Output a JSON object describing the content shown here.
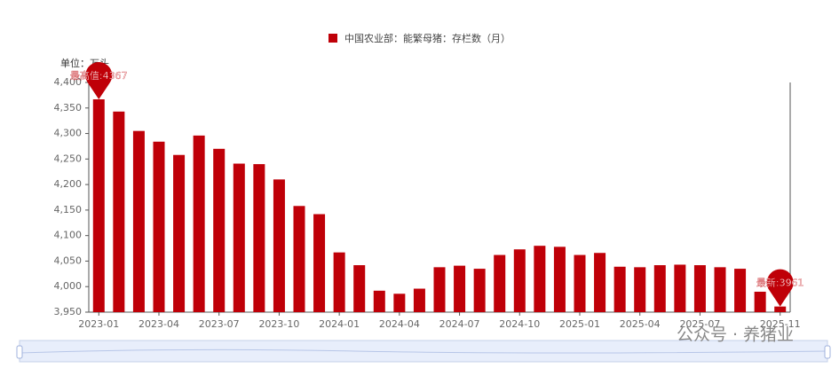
{
  "chart_data": {
    "type": "bar",
    "legend_label": "中国农业部：能繁母猪：存栏数（月）",
    "unit_label": "单位：万头",
    "annotations": [
      {
        "text": "最高值:4367",
        "index": 0
      },
      {
        "text": "最新:3961",
        "index": 34
      }
    ],
    "watermark": "公众号 · 养猪业",
    "categories": [
      "2023-01",
      null,
      null,
      "2023-04",
      null,
      null,
      "2023-07",
      null,
      null,
      "2023-10",
      null,
      null,
      "2024-01",
      null,
      null,
      "2024-04",
      null,
      null,
      "2024-07",
      null,
      null,
      "2024-10",
      null,
      null,
      "2025-01",
      null,
      null,
      "2025-04",
      null,
      null,
      "2025-07",
      null,
      null,
      null,
      "2025-11"
    ],
    "values": [
      4367,
      4343,
      4305,
      4284,
      4258,
      4296,
      4270,
      4241,
      4240,
      4210,
      4158,
      4142,
      4067,
      4042,
      3992,
      3986,
      3996,
      4038,
      4041,
      4035,
      4062,
      4073,
      4080,
      4078,
      4062,
      4066,
      4039,
      4038,
      4042,
      4043,
      4042,
      4038,
      4035,
      3990,
      3961
    ],
    "color": "#bf0008",
    "ylim": [
      3950,
      4400
    ],
    "yticks": [
      {
        "value": 3950,
        "label": "3,950"
      },
      {
        "value": 4000,
        "label": "4,000"
      },
      {
        "value": 4050,
        "label": "4,050"
      },
      {
        "value": 4100,
        "label": "4,100"
      },
      {
        "value": 4150,
        "label": "4,150"
      },
      {
        "value": 4200,
        "label": "4,200"
      },
      {
        "value": 4250,
        "label": "4,250"
      },
      {
        "value": 4300,
        "label": "4,300"
      },
      {
        "value": 4350,
        "label": "4,350"
      },
      {
        "value": 4400,
        "label": "4,400"
      }
    ],
    "grid": false
  }
}
